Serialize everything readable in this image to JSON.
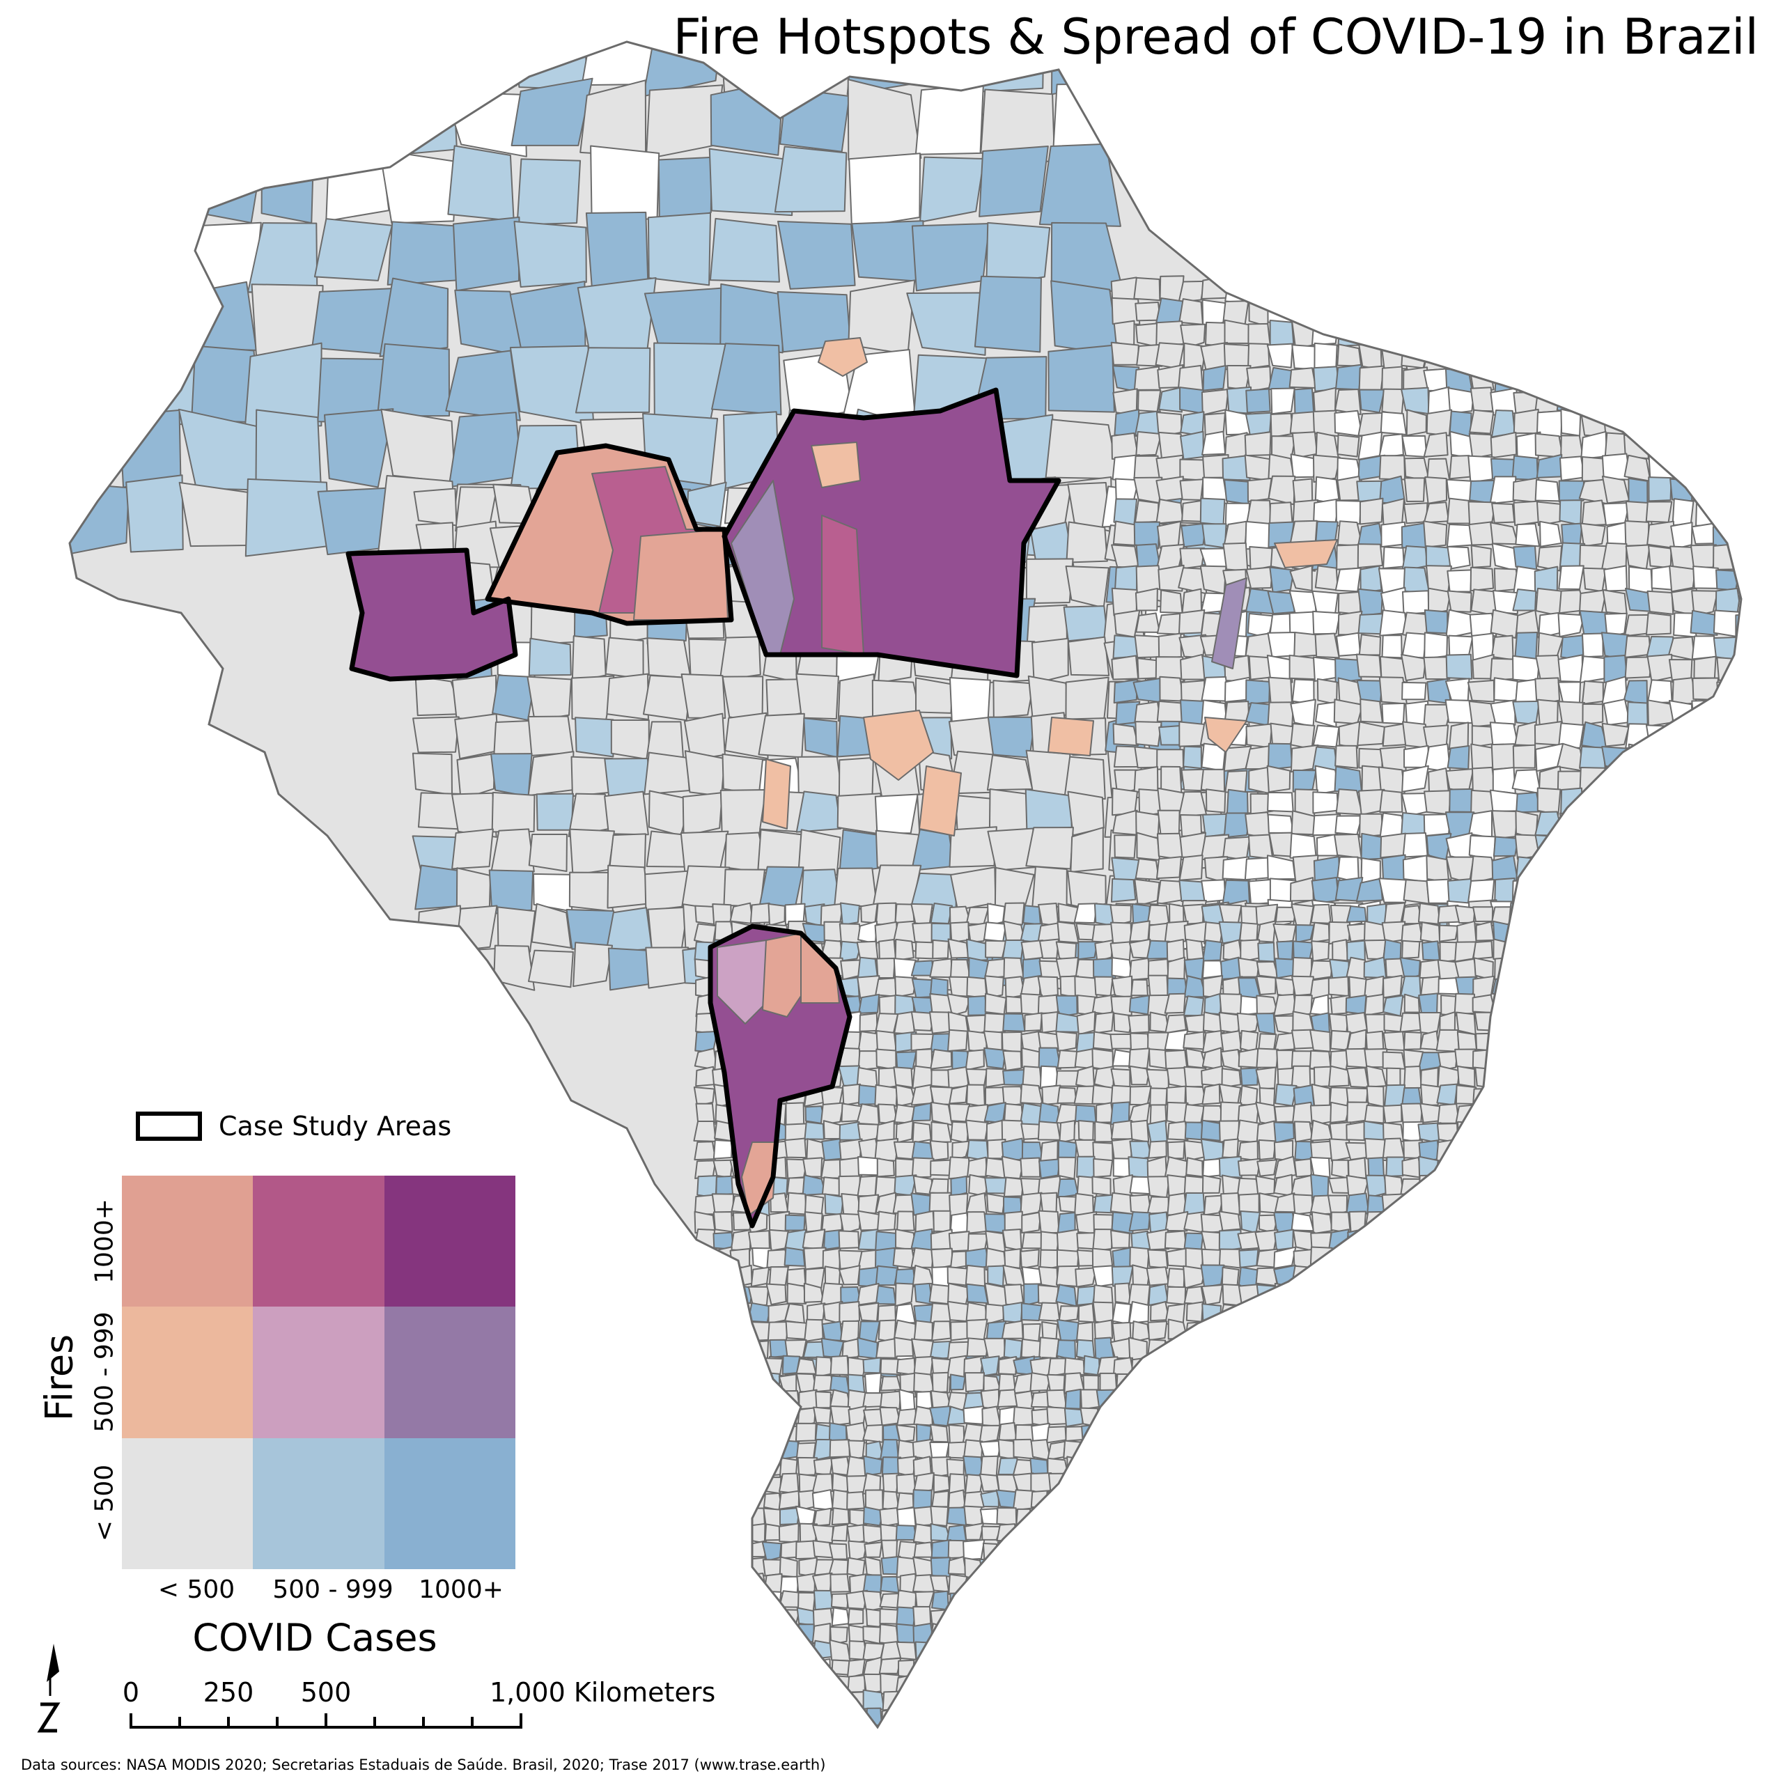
{
  "title": "Fire Hotspots & Spread of COVID-19 in Brazil",
  "legend": {
    "case_study_label": "Case Study Areas",
    "x_axis_title": "COVID Cases",
    "y_axis_title": "Fires",
    "x_classes": [
      "< 500",
      "500 - 999",
      "1000+"
    ],
    "y_classes": [
      "< 500",
      "500 - 999",
      "1000+"
    ],
    "grid_colors": [
      [
        "#e0a092",
        "#b25888",
        "#85357e"
      ],
      [
        "#ecb89d",
        "#cc9fbf",
        "#9479a6"
      ],
      [
        "#e3e3e3",
        "#a7c5da",
        "#89b0d1"
      ]
    ]
  },
  "map_colors": {
    "no_data": "#ffffff",
    "low_low": "#e3e3e3",
    "cases_mid": "#b3cfe2",
    "cases_high": "#93b8d5",
    "fires_mid_cases_low": "#f0bfa4",
    "fires_high_cases_low": "#e3a596",
    "fires_high_cases_mid": "#b95f90",
    "fires_high_cases_high": "#944f92",
    "fires_mid_cases_mid": "#cca2c4",
    "fires_mid_cases_high": "#a08eb7",
    "boundary": "#6b6b6b",
    "case_area_outline": "#000000"
  },
  "scale_bar": {
    "labels": [
      "0",
      "250",
      "500"
    ],
    "end_label": "1,000 Kilometers"
  },
  "north_arrow": {
    "icon": "north-arrow-icon"
  },
  "sources": "Data sources: NASA MODIS 2020; Secretarias Estaduais de Saúde. Brasil, 2020; Trase 2017 (www.trase.earth)"
}
